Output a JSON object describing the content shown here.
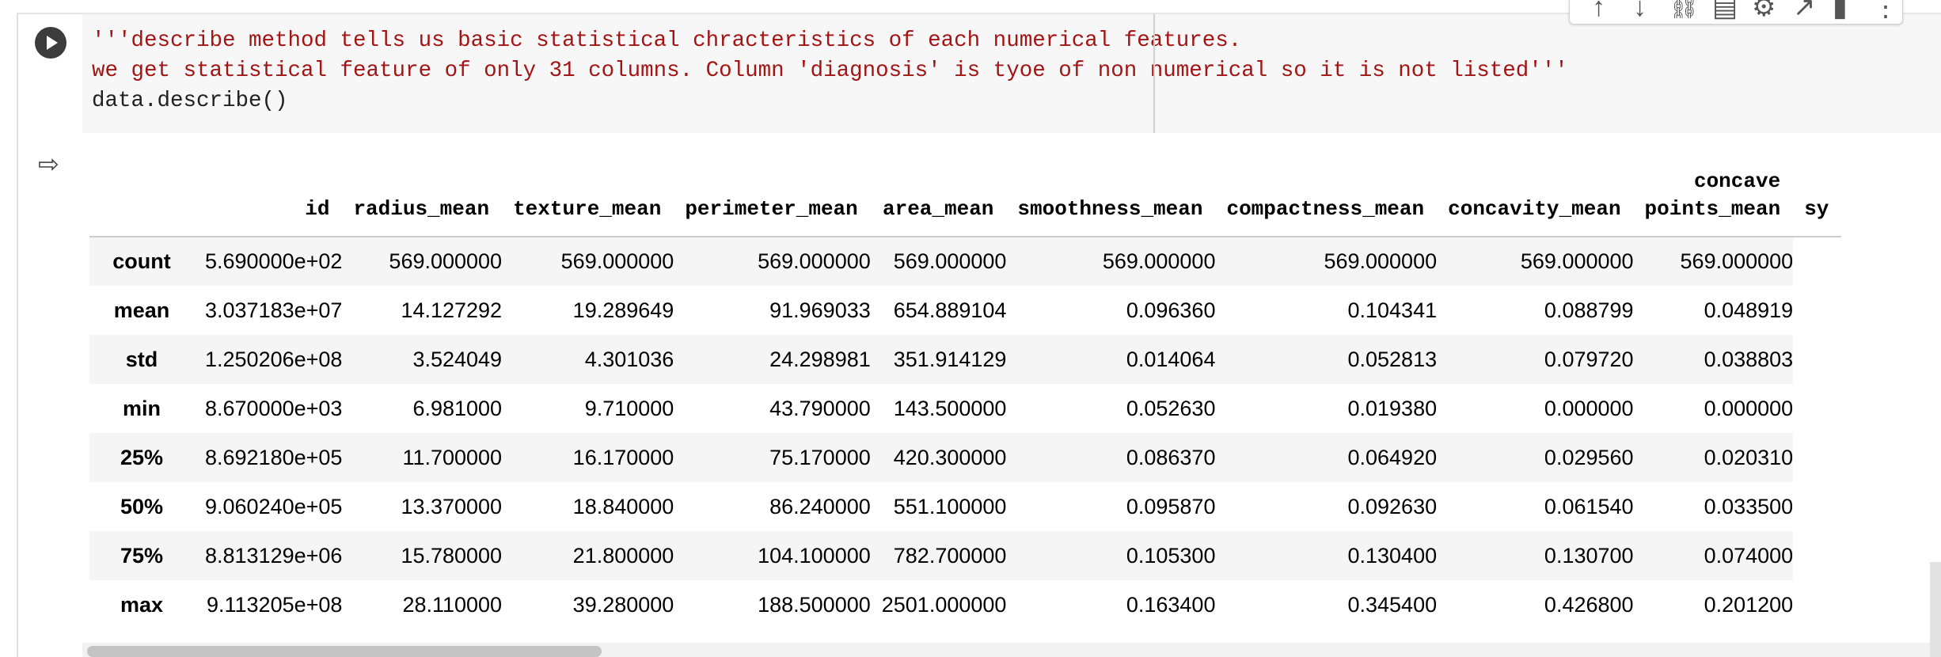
{
  "code_cell": {
    "lines": [
      "'''describe method tells us basic statistical chracteristics of each numerical features.",
      "we get statistical feature of only 31 columns. Column 'diagnosis' is tyoe of non numerical so it is not listed'''",
      "data.describe()"
    ]
  },
  "toolbar": {
    "icons": [
      "arrow-up-icon",
      "arrow-down-icon",
      "link-icon",
      "comment-icon",
      "gear-icon",
      "expand-icon",
      "trash-icon",
      "more-icon"
    ]
  },
  "output": {
    "columns": [
      "",
      "id",
      "radius_mean",
      "texture_mean",
      "perimeter_mean",
      "area_mean",
      "smoothness_mean",
      "compactness_mean",
      "concavity_mean",
      "concave\npoints_mean",
      "sy"
    ],
    "rows": [
      {
        "label": "count",
        "values": [
          "5.690000e+02",
          "569.000000",
          "569.000000",
          "569.000000",
          "569.000000",
          "569.000000",
          "569.000000",
          "569.000000",
          "569.000000"
        ]
      },
      {
        "label": "mean",
        "values": [
          "3.037183e+07",
          "14.127292",
          "19.289649",
          "91.969033",
          "654.889104",
          "0.096360",
          "0.104341",
          "0.088799",
          "0.048919"
        ]
      },
      {
        "label": "std",
        "values": [
          "1.250206e+08",
          "3.524049",
          "4.301036",
          "24.298981",
          "351.914129",
          "0.014064",
          "0.052813",
          "0.079720",
          "0.038803"
        ]
      },
      {
        "label": "min",
        "values": [
          "8.670000e+03",
          "6.981000",
          "9.710000",
          "43.790000",
          "143.500000",
          "0.052630",
          "0.019380",
          "0.000000",
          "0.000000"
        ]
      },
      {
        "label": "25%",
        "values": [
          "8.692180e+05",
          "11.700000",
          "16.170000",
          "75.170000",
          "420.300000",
          "0.086370",
          "0.064920",
          "0.029560",
          "0.020310"
        ]
      },
      {
        "label": "50%",
        "values": [
          "9.060240e+05",
          "13.370000",
          "18.840000",
          "86.240000",
          "551.100000",
          "0.095870",
          "0.092630",
          "0.061540",
          "0.033500"
        ]
      },
      {
        "label": "75%",
        "values": [
          "8.813129e+06",
          "15.780000",
          "21.800000",
          "104.100000",
          "782.700000",
          "0.105300",
          "0.130400",
          "0.130700",
          "0.074000"
        ]
      },
      {
        "label": "max",
        "values": [
          "9.113205e+08",
          "28.110000",
          "39.280000",
          "188.500000",
          "2501.000000",
          "0.163400",
          "0.345400",
          "0.426800",
          "0.201200"
        ]
      }
    ]
  }
}
